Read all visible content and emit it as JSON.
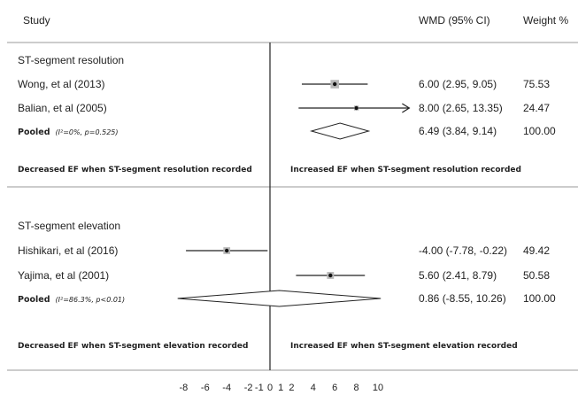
{
  "header": {
    "study": "Study",
    "wmd": "WMD (95% CI)",
    "weight": "Weight %"
  },
  "chart_data": {
    "type": "forest",
    "xlim": [
      -9,
      11
    ],
    "xticks": [
      "-8",
      "-6",
      "-4",
      "-2",
      "-1",
      "0",
      "1",
      "2",
      "4",
      "6",
      "8",
      "10"
    ],
    "reference_line": 0,
    "groups": [
      {
        "name": "ST-segment resolution",
        "studies": [
          {
            "label": "Wong, et al (2013)",
            "est": 6.0,
            "lo": 2.95,
            "hi": 9.05,
            "ci_text": "6.00 (2.95, 9.05)",
            "weight": "75.53"
          },
          {
            "label": "Balian, et al (2005)",
            "est": 8.0,
            "lo": 2.65,
            "hi": 13.35,
            "ci_text": "8.00 (2.65, 13.35)",
            "weight": "24.47",
            "arrow_right": true
          }
        ],
        "pooled": {
          "label": "Pooled",
          "stat": "(I²=0%, p=0.525)",
          "est": 6.49,
          "lo": 3.84,
          "hi": 9.14,
          "ci_text": "6.49 (3.84, 9.14)",
          "weight": "100.00"
        },
        "left_note": "Decreased EF when ST-segment resolution recorded",
        "right_note": "Increased EF when ST-segment  resolution recorded"
      },
      {
        "name": "ST-segment elevation",
        "studies": [
          {
            "label": "Hishikari, et al (2016)",
            "est": -4.0,
            "lo": -7.78,
            "hi": -0.22,
            "ci_text": "-4.00 (-7.78, -0.22)",
            "weight": "49.42"
          },
          {
            "label": "Yajima, et al (2001)",
            "est": 5.6,
            "lo": 2.41,
            "hi": 8.79,
            "ci_text": "5.60 (2.41, 8.79)",
            "weight": "50.58"
          }
        ],
        "pooled": {
          "label": "Pooled",
          "stat": "(I²=86.3%, p<0.01)",
          "est": 0.86,
          "lo": -8.55,
          "hi": 10.26,
          "ci_text": "0.86 (-8.55, 10.26)",
          "weight": "100.00"
        },
        "left_note": "Decreased EF when ST-segment elevation recorded",
        "right_note": "Increased EF when ST-segment  elevation recorded"
      }
    ]
  }
}
